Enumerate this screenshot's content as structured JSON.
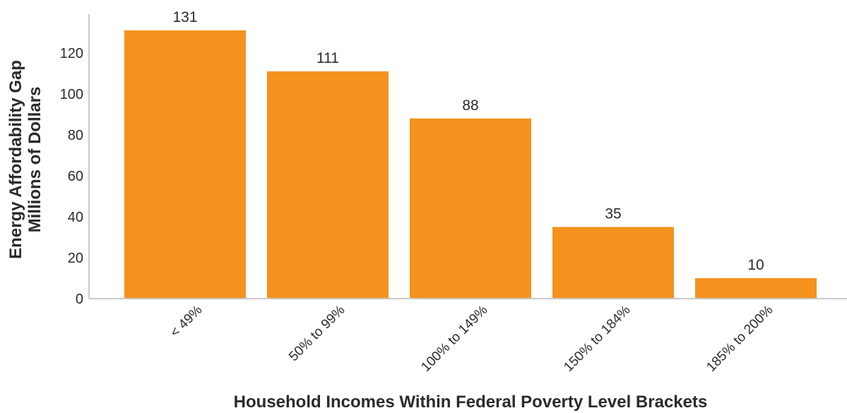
{
  "chart_data": {
    "type": "bar",
    "categories": [
      "< 49%",
      "50% to 99%",
      "100% to 149%",
      "150% to 184%",
      "185% to 200%"
    ],
    "values": [
      131,
      111,
      88,
      35,
      10
    ],
    "data_labels": [
      "131",
      "111",
      "88",
      "35",
      "10"
    ],
    "title": "",
    "xlabel": "Household Incomes Within Federal Poverty Level Brackets",
    "ylabel_line1": "Energy Affordability Gap",
    "ylabel_line2": "Millions of Dollars",
    "ylim": [
      0,
      137
    ],
    "yticks": [
      0,
      20,
      40,
      60,
      80,
      100,
      120
    ],
    "ytick_labels": [
      "0",
      "20",
      "40",
      "60",
      "80",
      "100",
      "120"
    ],
    "grid": false,
    "legend": "none",
    "colors": {
      "bar": "#f5921e",
      "axis": "#c8c8c8",
      "text": "#2b2b2b"
    }
  }
}
